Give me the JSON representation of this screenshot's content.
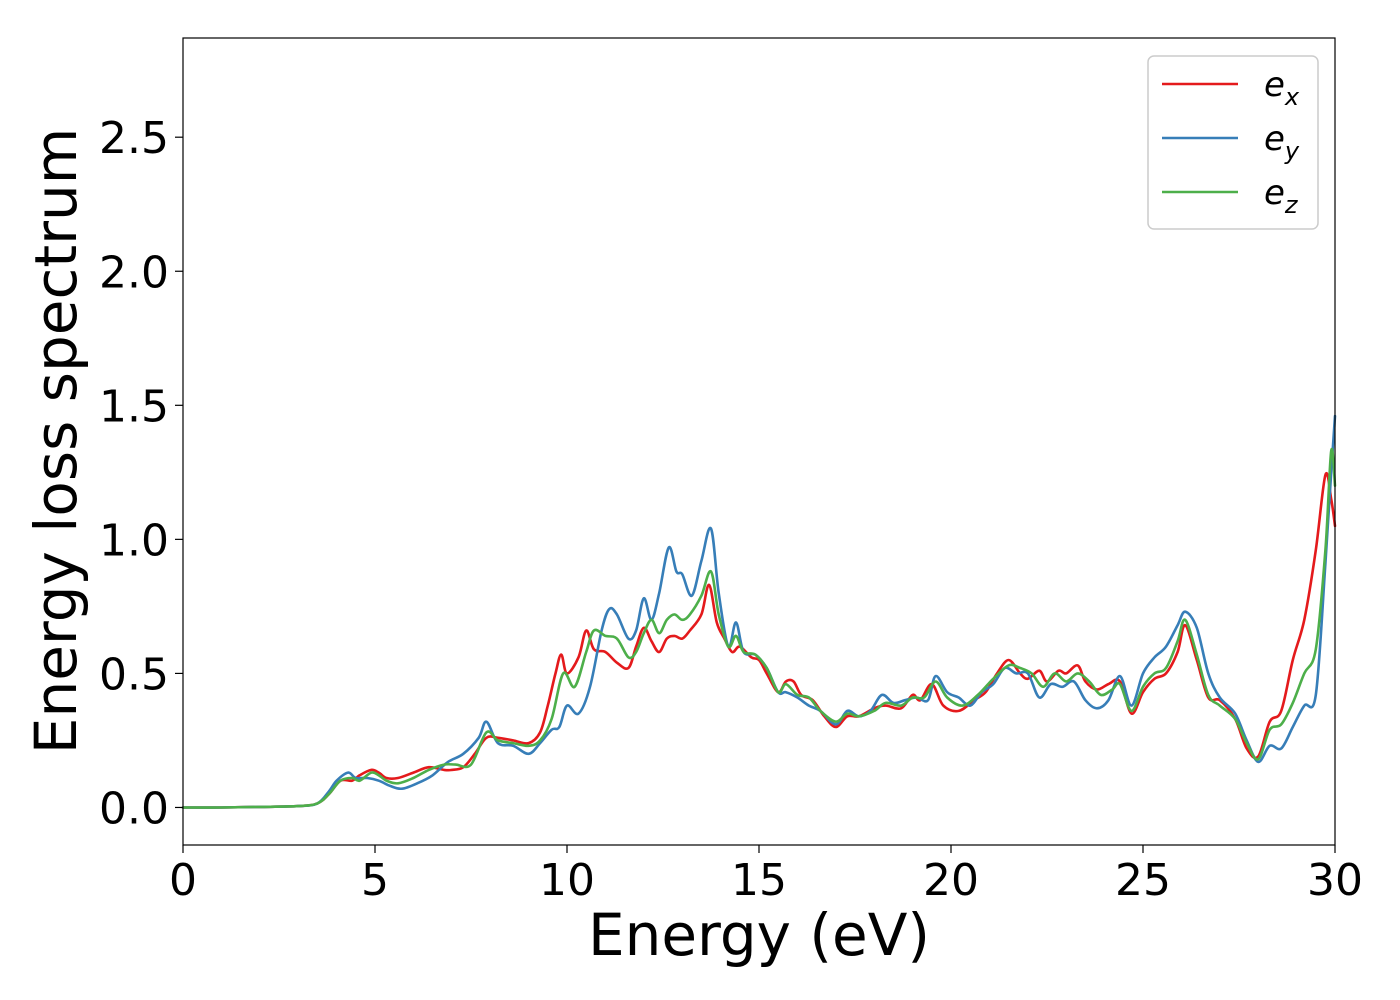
{
  "chart_data": {
    "type": "line",
    "xlabel": "Energy (eV)",
    "ylabel": "Energy loss spectrum",
    "xlim": [
      0,
      30
    ],
    "ylim": [
      -0.14,
      2.87
    ],
    "xticks": [
      0,
      5,
      10,
      15,
      20,
      25,
      30
    ],
    "xtick_labels": [
      "0",
      "5",
      "10",
      "15",
      "20",
      "25",
      "30"
    ],
    "yticks": [
      0.0,
      0.5,
      1.0,
      1.5,
      2.0,
      2.5
    ],
    "ytick_labels": [
      "0.0",
      "0.5",
      "1.0",
      "1.5",
      "2.0",
      "2.5"
    ],
    "grid": false,
    "legend_position": "top-right",
    "series": [
      {
        "name": "e_x",
        "legend_main": "e",
        "legend_sub": "x",
        "color": "#e41a1c",
        "x": [
          0,
          1,
          2,
          3,
          3.5,
          3.8,
          4.1,
          4.4,
          4.6,
          4.9,
          5.1,
          5.3,
          5.6,
          6.0,
          6.4,
          6.8,
          7.0,
          7.3,
          7.6,
          7.9,
          8.2,
          8.6,
          9.0,
          9.3,
          9.5,
          9.7,
          9.85,
          10.0,
          10.3,
          10.5,
          10.7,
          11.0,
          11.3,
          11.6,
          11.8,
          12.0,
          12.2,
          12.4,
          12.6,
          12.8,
          13.0,
          13.2,
          13.5,
          13.7,
          13.9,
          14.1,
          14.3,
          14.5,
          14.8,
          15.0,
          15.2,
          15.5,
          15.7,
          15.9,
          16.1,
          16.4,
          16.7,
          17.0,
          17.3,
          17.6,
          18.0,
          18.3,
          18.7,
          19.0,
          19.2,
          19.5,
          19.8,
          20.2,
          20.6,
          20.9,
          21.2,
          21.5,
          21.8,
          22.0,
          22.3,
          22.5,
          22.8,
          23.0,
          23.3,
          23.5,
          23.8,
          24.1,
          24.4,
          24.7,
          25.0,
          25.3,
          25.6,
          25.9,
          26.1,
          26.4,
          26.7,
          27.0,
          27.4,
          27.7,
          28.0,
          28.3,
          28.6,
          28.9,
          29.2,
          29.5,
          29.75,
          29.9,
          30.0
        ],
        "y": [
          0.0,
          0.0,
          0.002,
          0.005,
          0.015,
          0.05,
          0.1,
          0.1,
          0.12,
          0.14,
          0.13,
          0.11,
          0.11,
          0.13,
          0.15,
          0.14,
          0.14,
          0.15,
          0.2,
          0.26,
          0.26,
          0.25,
          0.24,
          0.28,
          0.38,
          0.5,
          0.57,
          0.5,
          0.56,
          0.66,
          0.59,
          0.58,
          0.54,
          0.52,
          0.6,
          0.67,
          0.62,
          0.58,
          0.63,
          0.64,
          0.63,
          0.66,
          0.72,
          0.83,
          0.69,
          0.63,
          0.58,
          0.6,
          0.56,
          0.55,
          0.5,
          0.43,
          0.47,
          0.47,
          0.42,
          0.4,
          0.34,
          0.3,
          0.34,
          0.34,
          0.37,
          0.38,
          0.37,
          0.42,
          0.4,
          0.46,
          0.38,
          0.36,
          0.4,
          0.43,
          0.5,
          0.55,
          0.5,
          0.48,
          0.51,
          0.47,
          0.51,
          0.5,
          0.53,
          0.47,
          0.44,
          0.46,
          0.47,
          0.35,
          0.43,
          0.48,
          0.5,
          0.58,
          0.68,
          0.55,
          0.41,
          0.4,
          0.33,
          0.22,
          0.19,
          0.32,
          0.36,
          0.55,
          0.7,
          0.96,
          1.24,
          1.15,
          1.05
        ]
      },
      {
        "name": "e_y",
        "legend_main": "e",
        "legend_sub": "y",
        "color": "#377eb8",
        "x": [
          0,
          1,
          2,
          3,
          3.5,
          3.8,
          4.0,
          4.3,
          4.5,
          4.8,
          5.1,
          5.4,
          5.7,
          6.1,
          6.5,
          6.9,
          7.3,
          7.7,
          7.9,
          8.2,
          8.6,
          9.0,
          9.3,
          9.6,
          9.8,
          10.0,
          10.3,
          10.6,
          10.9,
          11.1,
          11.3,
          11.6,
          11.8,
          12.0,
          12.2,
          12.4,
          12.65,
          12.85,
          13.0,
          13.25,
          13.5,
          13.75,
          13.95,
          14.2,
          14.4,
          14.6,
          14.9,
          15.2,
          15.5,
          15.7,
          16.0,
          16.3,
          16.6,
          17.0,
          17.3,
          17.6,
          17.9,
          18.2,
          18.5,
          18.8,
          19.1,
          19.4,
          19.6,
          19.9,
          20.2,
          20.5,
          20.8,
          21.1,
          21.4,
          21.7,
          22.0,
          22.3,
          22.6,
          22.9,
          23.2,
          23.5,
          23.8,
          24.1,
          24.4,
          24.7,
          25.0,
          25.3,
          25.6,
          25.9,
          26.1,
          26.4,
          26.7,
          27.0,
          27.4,
          27.7,
          28.0,
          28.3,
          28.6,
          28.9,
          29.2,
          29.5,
          29.75,
          29.9,
          30.0
        ],
        "y": [
          0.0,
          0.0,
          0.002,
          0.005,
          0.015,
          0.06,
          0.1,
          0.13,
          0.11,
          0.11,
          0.1,
          0.08,
          0.07,
          0.09,
          0.12,
          0.17,
          0.2,
          0.26,
          0.32,
          0.24,
          0.23,
          0.2,
          0.24,
          0.29,
          0.3,
          0.38,
          0.35,
          0.45,
          0.66,
          0.74,
          0.72,
          0.63,
          0.66,
          0.78,
          0.7,
          0.8,
          0.97,
          0.88,
          0.87,
          0.79,
          0.92,
          1.04,
          0.8,
          0.6,
          0.69,
          0.58,
          0.57,
          0.52,
          0.43,
          0.43,
          0.41,
          0.38,
          0.36,
          0.31,
          0.36,
          0.34,
          0.36,
          0.42,
          0.39,
          0.4,
          0.41,
          0.4,
          0.49,
          0.43,
          0.41,
          0.38,
          0.43,
          0.46,
          0.52,
          0.5,
          0.5,
          0.41,
          0.46,
          0.45,
          0.47,
          0.4,
          0.37,
          0.4,
          0.49,
          0.38,
          0.5,
          0.56,
          0.6,
          0.68,
          0.73,
          0.67,
          0.5,
          0.41,
          0.35,
          0.25,
          0.17,
          0.23,
          0.22,
          0.3,
          0.38,
          0.42,
          0.91,
          1.25,
          1.46
        ]
      },
      {
        "name": "e_z",
        "legend_main": "e",
        "legend_sub": "z",
        "color": "#4daf4a",
        "x": [
          0,
          1,
          2,
          3,
          3.5,
          3.8,
          4.1,
          4.4,
          4.6,
          4.9,
          5.1,
          5.3,
          5.6,
          6.0,
          6.4,
          6.8,
          7.1,
          7.5,
          7.9,
          8.2,
          8.6,
          9.0,
          9.3,
          9.6,
          9.9,
          10.2,
          10.5,
          10.7,
          11.0,
          11.3,
          11.6,
          11.8,
          12.0,
          12.2,
          12.4,
          12.6,
          12.8,
          13.0,
          13.2,
          13.5,
          13.75,
          13.95,
          14.2,
          14.4,
          14.6,
          14.9,
          15.2,
          15.5,
          15.7,
          16.0,
          16.3,
          16.6,
          17.0,
          17.3,
          17.6,
          18.0,
          18.3,
          18.7,
          19.0,
          19.3,
          19.6,
          19.9,
          20.3,
          20.7,
          21.1,
          21.5,
          21.8,
          22.1,
          22.4,
          22.7,
          23.0,
          23.3,
          23.6,
          23.9,
          24.2,
          24.4,
          24.7,
          25.0,
          25.3,
          25.6,
          25.9,
          26.1,
          26.4,
          26.7,
          27.0,
          27.4,
          27.7,
          28.0,
          28.3,
          28.6,
          28.9,
          29.2,
          29.5,
          29.75,
          29.9,
          30.0
        ],
        "y": [
          0.0,
          0.0,
          0.002,
          0.005,
          0.015,
          0.05,
          0.1,
          0.11,
          0.1,
          0.13,
          0.12,
          0.1,
          0.09,
          0.11,
          0.14,
          0.16,
          0.16,
          0.16,
          0.28,
          0.25,
          0.24,
          0.23,
          0.25,
          0.33,
          0.5,
          0.45,
          0.58,
          0.66,
          0.64,
          0.63,
          0.56,
          0.58,
          0.65,
          0.7,
          0.65,
          0.7,
          0.72,
          0.7,
          0.72,
          0.79,
          0.88,
          0.72,
          0.6,
          0.64,
          0.58,
          0.57,
          0.52,
          0.43,
          0.46,
          0.42,
          0.41,
          0.36,
          0.32,
          0.35,
          0.34,
          0.36,
          0.39,
          0.38,
          0.41,
          0.41,
          0.47,
          0.41,
          0.38,
          0.42,
          0.48,
          0.53,
          0.52,
          0.5,
          0.45,
          0.5,
          0.47,
          0.5,
          0.47,
          0.42,
          0.44,
          0.46,
          0.36,
          0.45,
          0.5,
          0.52,
          0.62,
          0.7,
          0.57,
          0.42,
          0.38,
          0.33,
          0.24,
          0.18,
          0.29,
          0.31,
          0.39,
          0.5,
          0.59,
          0.96,
          1.33,
          1.2
        ]
      }
    ]
  }
}
